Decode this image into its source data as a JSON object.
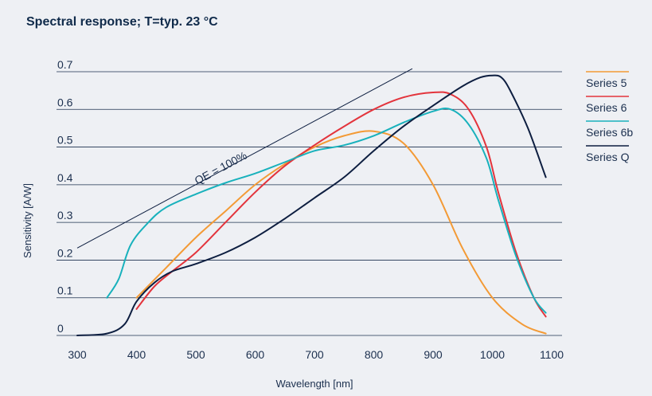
{
  "chart_data": {
    "type": "line",
    "title": "Spectral response; T=typ. 23 °C",
    "xlabel": "Wavelength [nm]",
    "ylabel": "Sensitivity  [A/W]",
    "xlim": [
      300,
      1100
    ],
    "ylim": [
      0,
      0.7
    ],
    "x_ticks": [
      300,
      400,
      500,
      600,
      700,
      800,
      900,
      1000,
      1100
    ],
    "y_ticks": [
      0,
      0.1,
      0.2,
      0.3,
      0.4,
      0.5,
      0.6,
      0.7
    ],
    "y_tick_labels": [
      "0",
      "0.1",
      "0.2",
      "0.3",
      "0.4",
      "0.5",
      "0.6",
      "0.7"
    ],
    "grid": "horizontal",
    "legend_position": "right",
    "annotation": {
      "text": "QE = 100%",
      "line": [
        [
          300,
          0.232
        ],
        [
          865,
          0.708
        ]
      ]
    },
    "series": [
      {
        "name": "Series 5",
        "color": "#f39a35",
        "x": [
          400,
          450,
          500,
          550,
          600,
          650,
          700,
          750,
          800,
          850,
          900,
          950,
          1000,
          1050,
          1090
        ],
        "y": [
          0.1,
          0.18,
          0.26,
          0.33,
          0.4,
          0.455,
          0.5,
          0.53,
          0.542,
          0.51,
          0.4,
          0.23,
          0.1,
          0.03,
          0.005
        ]
      },
      {
        "name": "Series 6",
        "color": "#e3343c",
        "x": [
          400,
          430,
          460,
          500,
          550,
          600,
          650,
          700,
          750,
          800,
          850,
          900,
          930,
          960,
          990,
          1010,
          1040,
          1070,
          1090
        ],
        "y": [
          0.07,
          0.13,
          0.17,
          0.22,
          0.3,
          0.38,
          0.45,
          0.505,
          0.555,
          0.6,
          0.632,
          0.645,
          0.64,
          0.6,
          0.5,
          0.38,
          0.22,
          0.1,
          0.05
        ]
      },
      {
        "name": "Series 6b",
        "color": "#18b1bc",
        "x": [
          350,
          370,
          390,
          420,
          450,
          500,
          550,
          600,
          650,
          700,
          750,
          800,
          850,
          900,
          930,
          960,
          990,
          1010,
          1040,
          1070,
          1090
        ],
        "y": [
          0.1,
          0.15,
          0.24,
          0.3,
          0.34,
          0.375,
          0.405,
          0.43,
          0.46,
          0.49,
          0.505,
          0.53,
          0.565,
          0.595,
          0.6,
          0.56,
          0.47,
          0.36,
          0.21,
          0.1,
          0.06
        ]
      },
      {
        "name": "Series Q",
        "color": "#0d1e40",
        "x": [
          300,
          350,
          380,
          400,
          430,
          460,
          500,
          550,
          600,
          650,
          700,
          750,
          800,
          850,
          900,
          950,
          980,
          1000,
          1015,
          1030,
          1060,
          1090
        ],
        "y": [
          0.0,
          0.005,
          0.03,
          0.09,
          0.14,
          0.17,
          0.19,
          0.22,
          0.26,
          0.31,
          0.365,
          0.42,
          0.49,
          0.555,
          0.61,
          0.662,
          0.685,
          0.69,
          0.685,
          0.65,
          0.55,
          0.42
        ]
      }
    ]
  }
}
